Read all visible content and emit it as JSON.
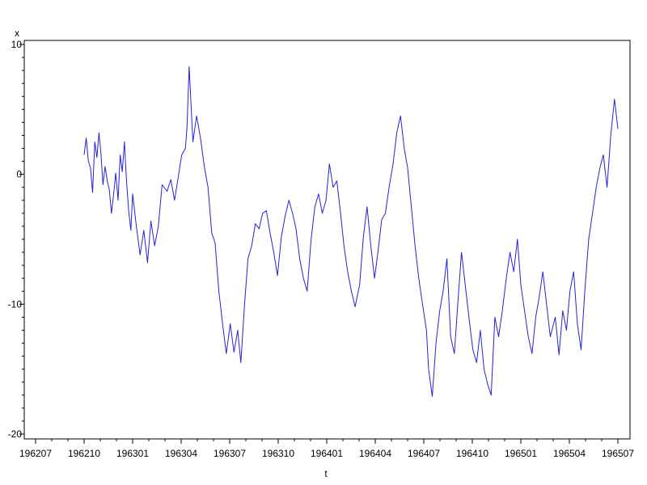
{
  "chart_data": {
    "type": "line",
    "title": "",
    "xlabel": "t",
    "ylabel": "x",
    "x_range": [
      "196207",
      "196507"
    ],
    "ylim": [
      -20,
      10
    ],
    "y_ticks": [
      {
        "value": 10,
        "label": "10"
      },
      {
        "value": 0,
        "label": "0"
      },
      {
        "value": -10,
        "label": "-10"
      },
      {
        "value": -20,
        "label": "-20"
      }
    ],
    "y_minor_step": 1,
    "x_ticks": [
      {
        "value": "196207",
        "label": "196207"
      },
      {
        "value": "196210",
        "label": "196210"
      },
      {
        "value": "196301",
        "label": "196301"
      },
      {
        "value": "196304",
        "label": "196304"
      },
      {
        "value": "196307",
        "label": "196307"
      },
      {
        "value": "196310",
        "label": "196310"
      },
      {
        "value": "196401",
        "label": "196401"
      },
      {
        "value": "196404",
        "label": "196404"
      },
      {
        "value": "196407",
        "label": "196407"
      },
      {
        "value": "196410",
        "label": "196410"
      },
      {
        "value": "196501",
        "label": "196501"
      },
      {
        "value": "196504",
        "label": "196504"
      },
      {
        "value": "196507",
        "label": "196507"
      }
    ],
    "x_minor_per_major": 3,
    "grid": false,
    "legend": "none",
    "line_color": "#2323d6",
    "series": [
      {
        "name": "",
        "x": [
          "1962-10-01",
          "1962-10-05",
          "1962-10-09",
          "1962-10-13",
          "1962-10-17",
          "1962-10-21",
          "1962-10-25",
          "1962-10-29",
          "1962-11-02",
          "1962-11-06",
          "1962-11-10",
          "1962-11-14",
          "1962-11-18",
          "1962-11-22",
          "1962-11-26",
          "1962-11-30",
          "1962-12-04",
          "1962-12-08",
          "1962-12-12",
          "1962-12-16",
          "1962-12-20",
          "1962-12-24",
          "1962-12-28",
          "1963-01-01",
          "1963-01-08",
          "1963-01-15",
          "1963-01-22",
          "1963-01-29",
          "1963-02-05",
          "1963-02-12",
          "1963-02-19",
          "1963-02-26",
          "1963-03-05",
          "1963-03-12",
          "1963-03-19",
          "1963-03-26",
          "1963-04-02",
          "1963-04-09",
          "1963-04-12",
          "1963-04-16",
          "1963-04-23",
          "1963-04-30",
          "1963-05-07",
          "1963-05-14",
          "1963-05-21",
          "1963-05-28",
          "1963-06-04",
          "1963-06-11",
          "1963-06-18",
          "1963-06-25",
          "1963-07-02",
          "1963-07-09",
          "1963-07-16",
          "1963-07-22",
          "1963-07-29",
          "1963-08-05",
          "1963-08-12",
          "1963-08-19",
          "1963-08-26",
          "1963-09-02",
          "1963-09-09",
          "1963-09-16",
          "1963-09-23",
          "1963-09-30",
          "1963-10-07",
          "1963-10-14",
          "1963-10-21",
          "1963-10-28",
          "1963-11-04",
          "1963-11-11",
          "1963-11-18",
          "1963-11-25",
          "1963-12-02",
          "1963-12-09",
          "1963-12-16",
          "1963-12-23",
          "1963-12-30",
          "1964-01-06",
          "1964-01-13",
          "1964-01-20",
          "1964-01-27",
          "1964-02-03",
          "1964-02-10",
          "1964-02-17",
          "1964-02-24",
          "1964-03-02",
          "1964-03-09",
          "1964-03-16",
          "1964-03-23",
          "1964-03-30",
          "1964-04-06",
          "1964-04-13",
          "1964-04-20",
          "1964-04-27",
          "1964-05-04",
          "1964-05-11",
          "1964-05-18",
          "1964-05-25",
          "1964-06-01",
          "1964-06-08",
          "1964-06-15",
          "1964-06-22",
          "1964-06-29",
          "1964-07-06",
          "1964-07-10",
          "1964-07-17",
          "1964-07-24",
          "1964-07-31",
          "1964-08-07",
          "1964-08-14",
          "1964-08-21",
          "1964-08-28",
          "1964-09-04",
          "1964-09-11",
          "1964-09-18",
          "1964-09-25",
          "1964-10-02",
          "1964-10-09",
          "1964-10-16",
          "1964-10-23",
          "1964-10-30",
          "1964-11-06",
          "1964-11-13",
          "1964-11-20",
          "1964-11-27",
          "1964-12-04",
          "1964-12-11",
          "1964-12-18",
          "1964-12-25",
          "1965-01-01",
          "1965-01-08",
          "1965-01-15",
          "1965-01-22",
          "1965-01-29",
          "1965-02-05",
          "1965-02-12",
          "1965-02-19",
          "1965-02-26",
          "1965-03-05",
          "1965-03-12",
          "1965-03-19",
          "1965-03-26",
          "1965-04-02",
          "1965-04-09",
          "1965-04-16",
          "1965-04-23",
          "1965-04-30",
          "1965-05-07",
          "1965-05-14",
          "1965-05-21",
          "1965-05-28",
          "1965-06-04",
          "1965-06-11",
          "1965-06-18",
          "1965-06-25",
          "1965-07-01"
        ],
        "values": [
          1.5,
          2.8,
          1.0,
          0.5,
          -1.4,
          2.5,
          1.3,
          3.2,
          1.7,
          -0.8,
          0.6,
          -0.5,
          -1.2,
          -3.0,
          -1.6,
          0.1,
          -2.0,
          1.5,
          0.2,
          2.5,
          -0.6,
          -2.8,
          -4.3,
          -1.5,
          -4.0,
          -6.2,
          -4.3,
          -6.8,
          -3.6,
          -5.5,
          -4.0,
          -0.8,
          -1.3,
          -0.4,
          -2.0,
          -0.2,
          1.5,
          2.0,
          3.6,
          8.3,
          2.5,
          4.5,
          2.8,
          0.6,
          -1.0,
          -4.5,
          -5.3,
          -9.0,
          -11.5,
          -13.8,
          -11.5,
          -13.7,
          -12.0,
          -14.5,
          -10.0,
          -6.5,
          -5.5,
          -3.8,
          -4.2,
          -3.0,
          -2.8,
          -4.5,
          -6.0,
          -7.8,
          -4.8,
          -3.2,
          -2.0,
          -3.0,
          -4.2,
          -6.5,
          -8.0,
          -9.0,
          -5.0,
          -2.5,
          -1.5,
          -3.0,
          -2.0,
          0.8,
          -1.0,
          -0.5,
          -3.0,
          -5.5,
          -7.5,
          -9.0,
          -10.2,
          -8.5,
          -4.8,
          -2.5,
          -5.5,
          -8.0,
          -6.0,
          -3.5,
          -3.0,
          -1.0,
          0.8,
          3.2,
          4.5,
          2.0,
          0.5,
          -2.5,
          -5.5,
          -8.0,
          -10.0,
          -12.0,
          -15.0,
          -17.1,
          -13.0,
          -10.5,
          -9.0,
          -6.5,
          -12.5,
          -13.8,
          -10.0,
          -6.0,
          -8.5,
          -11.0,
          -13.5,
          -14.5,
          -12.0,
          -15.0,
          -16.2,
          -17.0,
          -11.0,
          -12.5,
          -10.5,
          -8.0,
          -6.0,
          -7.5,
          -5.0,
          -8.5,
          -10.5,
          -12.5,
          -13.8,
          -11.0,
          -9.5,
          -7.5,
          -10.0,
          -12.5,
          -11.0,
          -13.9,
          -10.5,
          -12.0,
          -9.0,
          -7.5,
          -11.5,
          -13.5,
          -9.0,
          -5.0,
          -3.0,
          -1.0,
          0.5,
          1.5,
          -1.0,
          3.0,
          5.8,
          3.5
        ]
      }
    ]
  }
}
